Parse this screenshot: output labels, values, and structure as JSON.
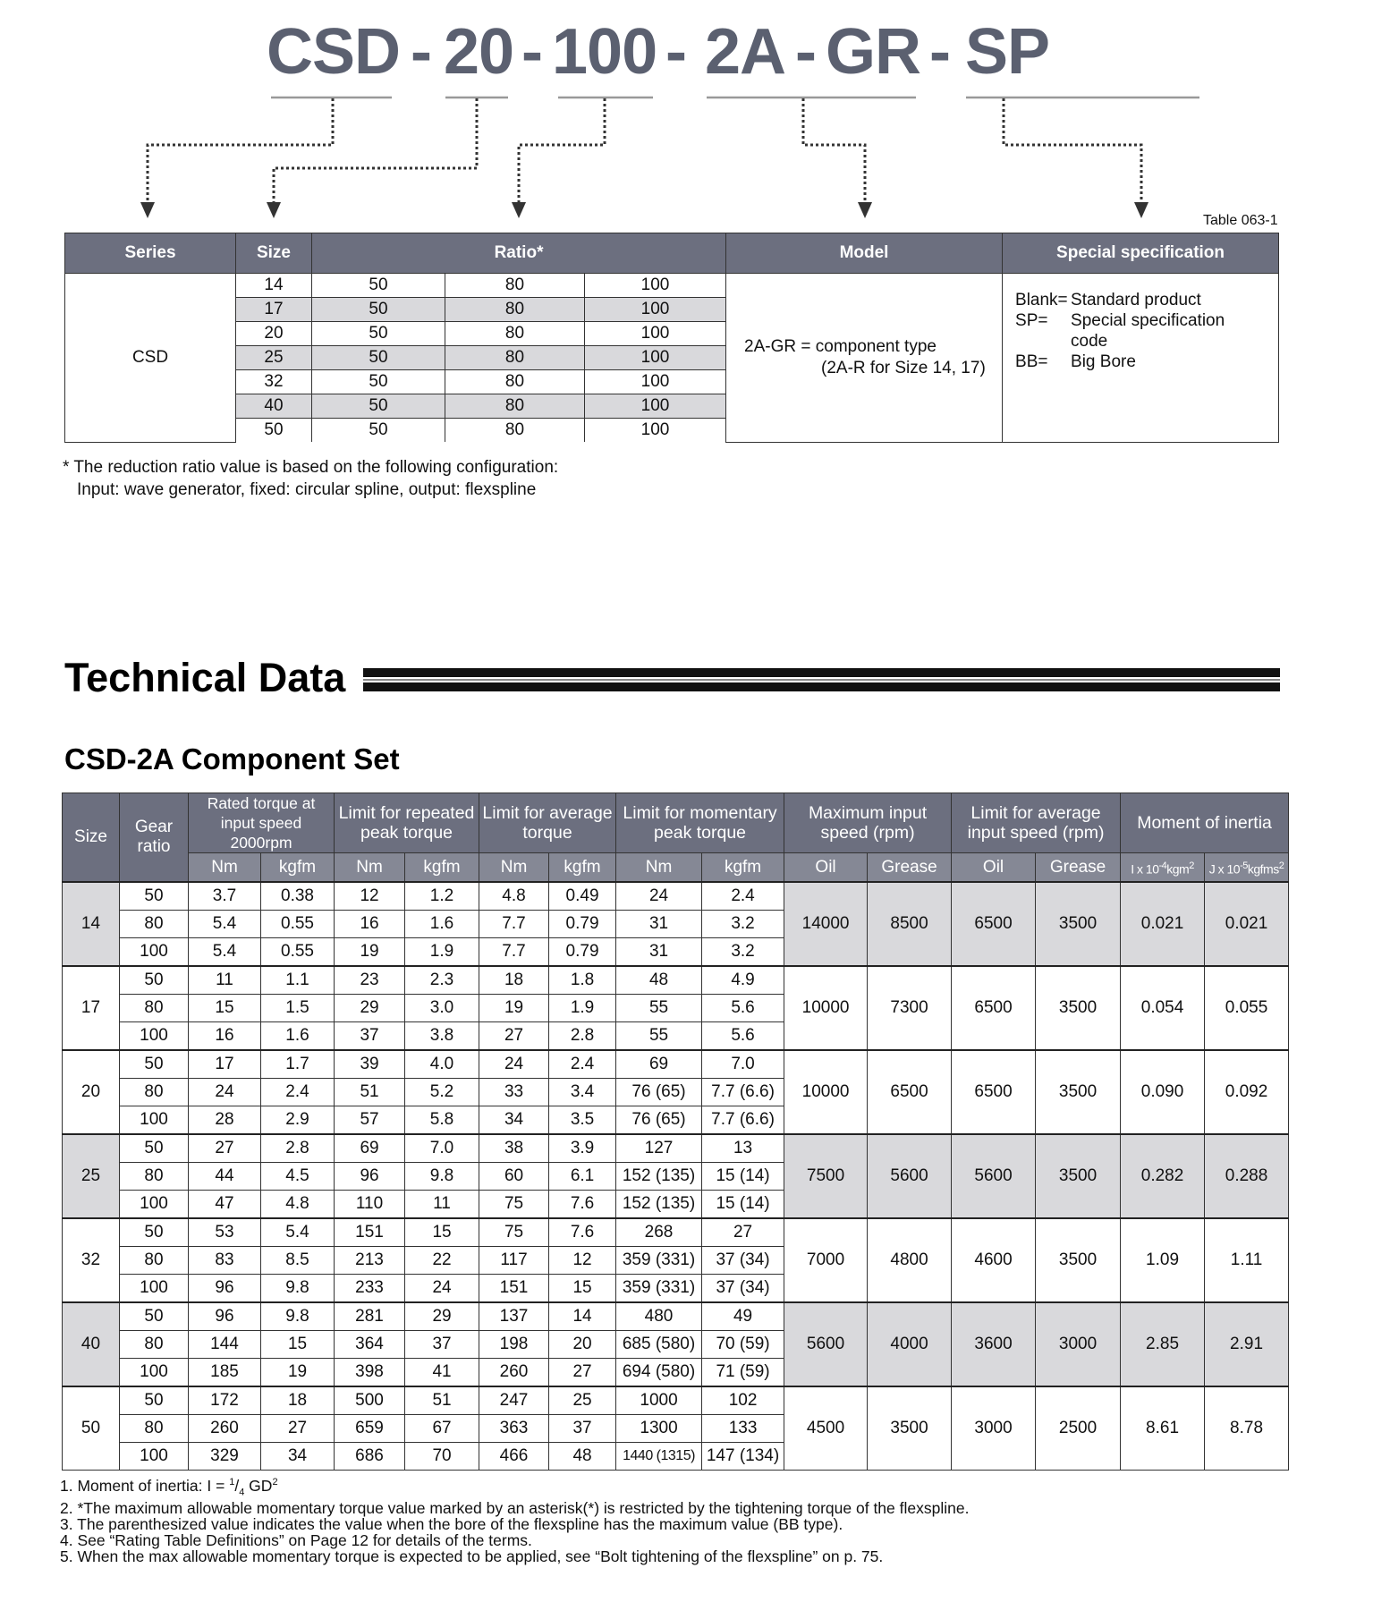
{
  "code": {
    "parts": [
      "CSD",
      "20",
      "100",
      "2A",
      "GR",
      "SP"
    ],
    "separator": "-"
  },
  "table1": {
    "label": "Table 063-1",
    "headers": [
      "Series",
      "Size",
      "Ratio*",
      "Model",
      "Special specification"
    ],
    "series": "CSD",
    "rows": [
      [
        "14",
        "50",
        "80",
        "100"
      ],
      [
        "17",
        "50",
        "80",
        "100"
      ],
      [
        "20",
        "50",
        "80",
        "100"
      ],
      [
        "25",
        "50",
        "80",
        "100"
      ],
      [
        "32",
        "50",
        "80",
        "100"
      ],
      [
        "40",
        "50",
        "80",
        "100"
      ],
      [
        "50",
        "50",
        "80",
        "100"
      ]
    ],
    "model": [
      "2A-GR = component type",
      "(2A-R for Size 14, 17)"
    ],
    "special": [
      [
        "Blank=",
        "Standard product"
      ],
      [
        "SP=",
        "Special specification code"
      ],
      [
        "BB=",
        "Big Bore"
      ]
    ],
    "note": [
      "* The reduction ratio value is based on the following configuration:",
      "Input: wave generator, fixed: circular spline, output: flexspline"
    ]
  },
  "section_title": "Technical Data",
  "subtitle": "CSD-2A Component Set",
  "table2": {
    "size_header": "Size",
    "ratio_header": "Gear ratio",
    "groups": [
      "Rated torque at input speed 2000rpm",
      "Limit for repeated peak torque",
      "Limit for average torque",
      "Limit for momentary peak torque",
      "Maximum input speed (rpm)",
      "Limit for average input speed (rpm)",
      "Moment of inertia"
    ],
    "sub_headers": [
      "Nm",
      "kgfm",
      "Nm",
      "kgfm",
      "Nm",
      "kgfm",
      "Nm",
      "kgfm",
      "Oil",
      "Grease",
      "Oil",
      "Grease"
    ],
    "inertia_headers": [
      {
        "base": "I x 10",
        "exp": "-4",
        "unit": "kgm",
        "exp2": "2"
      },
      {
        "base": "J x 10",
        "exp": "-5",
        "unit": "kgfms",
        "exp2": "2"
      }
    ],
    "sizes": [
      {
        "size": "14",
        "rows": [
          [
            "50",
            "3.7",
            "0.38",
            "12",
            "1.2",
            "4.8",
            "0.49",
            "24",
            "2.4"
          ],
          [
            "80",
            "5.4",
            "0.55",
            "16",
            "1.6",
            "7.7",
            "0.79",
            "31",
            "3.2"
          ],
          [
            "100",
            "5.4",
            "0.55",
            "19",
            "1.9",
            "7.7",
            "0.79",
            "31",
            "3.2"
          ]
        ],
        "common": [
          "14000",
          "8500",
          "6500",
          "3500",
          "0.021",
          "0.021"
        ]
      },
      {
        "size": "17",
        "rows": [
          [
            "50",
            "11",
            "1.1",
            "23",
            "2.3",
            "18",
            "1.8",
            "48",
            "4.9"
          ],
          [
            "80",
            "15",
            "1.5",
            "29",
            "3.0",
            "19",
            "1.9",
            "55",
            "5.6"
          ],
          [
            "100",
            "16",
            "1.6",
            "37",
            "3.8",
            "27",
            "2.8",
            "55",
            "5.6"
          ]
        ],
        "common": [
          "10000",
          "7300",
          "6500",
          "3500",
          "0.054",
          "0.055"
        ]
      },
      {
        "size": "20",
        "rows": [
          [
            "50",
            "17",
            "1.7",
            "39",
            "4.0",
            "24",
            "2.4",
            "69",
            "7.0"
          ],
          [
            "80",
            "24",
            "2.4",
            "51",
            "5.2",
            "33",
            "3.4",
            "76 (65)",
            "7.7 (6.6)"
          ],
          [
            "100",
            "28",
            "2.9",
            "57",
            "5.8",
            "34",
            "3.5",
            "76 (65)",
            "7.7 (6.6)"
          ]
        ],
        "common": [
          "10000",
          "6500",
          "6500",
          "3500",
          "0.090",
          "0.092"
        ]
      },
      {
        "size": "25",
        "rows": [
          [
            "50",
            "27",
            "2.8",
            "69",
            "7.0",
            "38",
            "3.9",
            "127",
            "13"
          ],
          [
            "80",
            "44",
            "4.5",
            "96",
            "9.8",
            "60",
            "6.1",
            "152 (135)",
            "15 (14)"
          ],
          [
            "100",
            "47",
            "4.8",
            "110",
            "11",
            "75",
            "7.6",
            "152 (135)",
            "15 (14)"
          ]
        ],
        "common": [
          "7500",
          "5600",
          "5600",
          "3500",
          "0.282",
          "0.288"
        ]
      },
      {
        "size": "32",
        "rows": [
          [
            "50",
            "53",
            "5.4",
            "151",
            "15",
            "75",
            "7.6",
            "268",
            "27"
          ],
          [
            "80",
            "83",
            "8.5",
            "213",
            "22",
            "117",
            "12",
            "359 (331)",
            "37 (34)"
          ],
          [
            "100",
            "96",
            "9.8",
            "233",
            "24",
            "151",
            "15",
            "359 (331)",
            "37 (34)"
          ]
        ],
        "common": [
          "7000",
          "4800",
          "4600",
          "3500",
          "1.09",
          "1.11"
        ]
      },
      {
        "size": "40",
        "rows": [
          [
            "50",
            "96",
            "9.8",
            "281",
            "29",
            "137",
            "14",
            "480",
            "49"
          ],
          [
            "80",
            "144",
            "15",
            "364",
            "37",
            "198",
            "20",
            "685 (580)",
            "70 (59)"
          ],
          [
            "100",
            "185",
            "19",
            "398",
            "41",
            "260",
            "27",
            "694 (580)",
            "71 (59)"
          ]
        ],
        "common": [
          "5600",
          "4000",
          "3600",
          "3000",
          "2.85",
          "2.91"
        ]
      },
      {
        "size": "50",
        "rows": [
          [
            "50",
            "172",
            "18",
            "500",
            "51",
            "247",
            "25",
            "1000",
            "102"
          ],
          [
            "80",
            "260",
            "27",
            "659",
            "67",
            "363",
            "37",
            "1300",
            "133"
          ],
          [
            "100",
            "329",
            "34",
            "686",
            "70",
            "466",
            "48",
            "1440 (1315)",
            "147 (134)"
          ]
        ],
        "common": [
          "4500",
          "3500",
          "3000",
          "2500",
          "8.61",
          "8.78"
        ]
      }
    ]
  },
  "footnotes": {
    "first": {
      "prefix": "1. Moment of inertia: I = ",
      "num": "1",
      "slash": "/",
      "den": "4",
      "suffix": " GD",
      "exp": "2"
    },
    "rest": [
      "2. *The maximum allowable momentary torque value marked by an asterisk(*) is restricted by the tightening torque of the flexspline.",
      "3. The parenthesized value indicates the value when the bore of the flexspline has the maximum value (BB type).",
      "4. See “Rating Table Definitions” on Page 12 for details of the terms.",
      "5. When the max allowable momentary torque is expected to be applied, see “Bolt tightening of the flexspline” on p. 75."
    ]
  }
}
